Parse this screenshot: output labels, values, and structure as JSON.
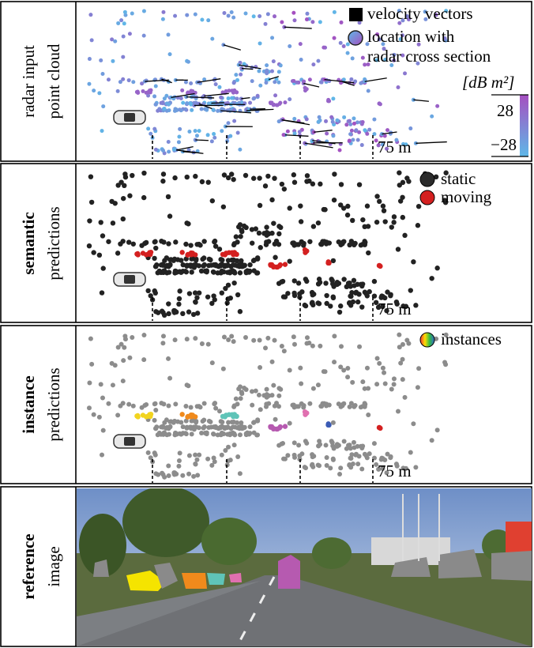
{
  "panels": [
    {
      "label": [
        "radar input",
        "point cloud"
      ],
      "legend": [
        "velocity vectors",
        "location with",
        "radar cross section"
      ],
      "colorbar": {
        "unit": "[dB m²]",
        "max": "28",
        "min": "−28"
      },
      "range_label": "75 m"
    },
    {
      "label": [
        "semantic",
        "predictions"
      ],
      "legend": [
        "static",
        "moving"
      ],
      "range_label": "75 m"
    },
    {
      "label": [
        "instance",
        "predictions"
      ],
      "legend": [
        "instances"
      ],
      "range_label": "75 m"
    },
    {
      "label": [
        "reference",
        "image"
      ]
    }
  ]
}
